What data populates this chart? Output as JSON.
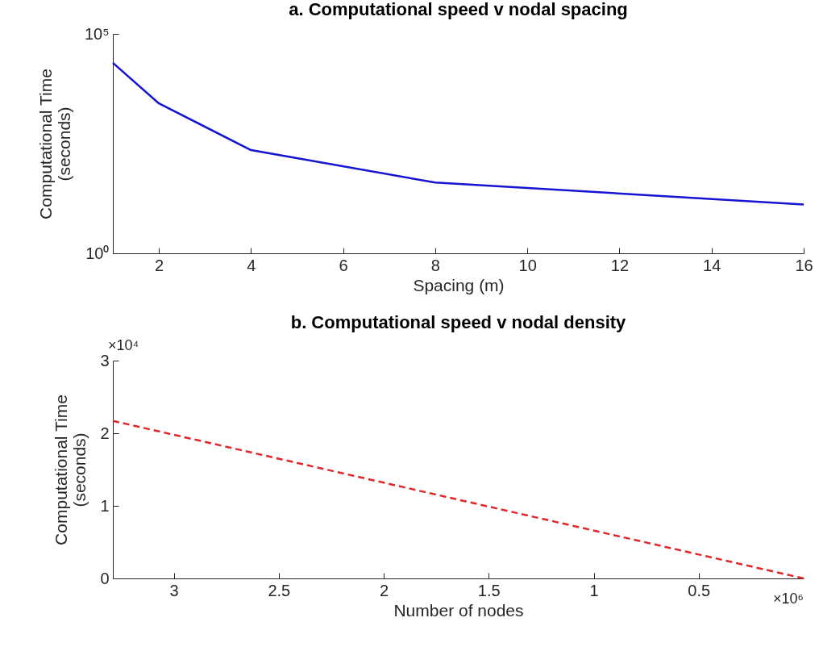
{
  "chart_data": [
    {
      "type": "line",
      "title": "a. Computational speed v nodal spacing",
      "xlabel": "Spacing (m)",
      "ylabel": "Computational Time\n(seconds)",
      "log": "y",
      "x": [
        1,
        2,
        4,
        8,
        16
      ],
      "series": [
        {
          "color": "#1414d2",
          "values": [
            21900,
            2600,
            225,
            41,
            13
          ]
        }
      ],
      "xlim": [
        1,
        16
      ],
      "xticks": [
        2,
        4,
        6,
        8,
        10,
        12,
        14,
        16
      ],
      "ylim": [
        1,
        100000
      ],
      "yticks": [
        {
          "value": 1,
          "label": "10⁰"
        },
        {
          "value": 100000,
          "label": "10⁵"
        }
      ],
      "line_style": "solid"
    },
    {
      "type": "line",
      "title": "b. Computational speed v nodal density",
      "xlabel": "Number of nodes",
      "ylabel": "Computational Time\n(seconds)",
      "x": [
        3.29,
        0
      ],
      "series": [
        {
          "color": "#e02828",
          "values": [
            2.17,
            0
          ],
          "line_style": "dashed"
        }
      ],
      "xlim": [
        3.29,
        0
      ],
      "xticks": [
        3,
        2.5,
        2,
        1.5,
        1,
        0.5
      ],
      "ylim": [
        0,
        3
      ],
      "yticks": [
        0,
        1,
        2,
        3
      ],
      "annotations": [
        "×10⁴",
        "×10⁶"
      ]
    }
  ]
}
